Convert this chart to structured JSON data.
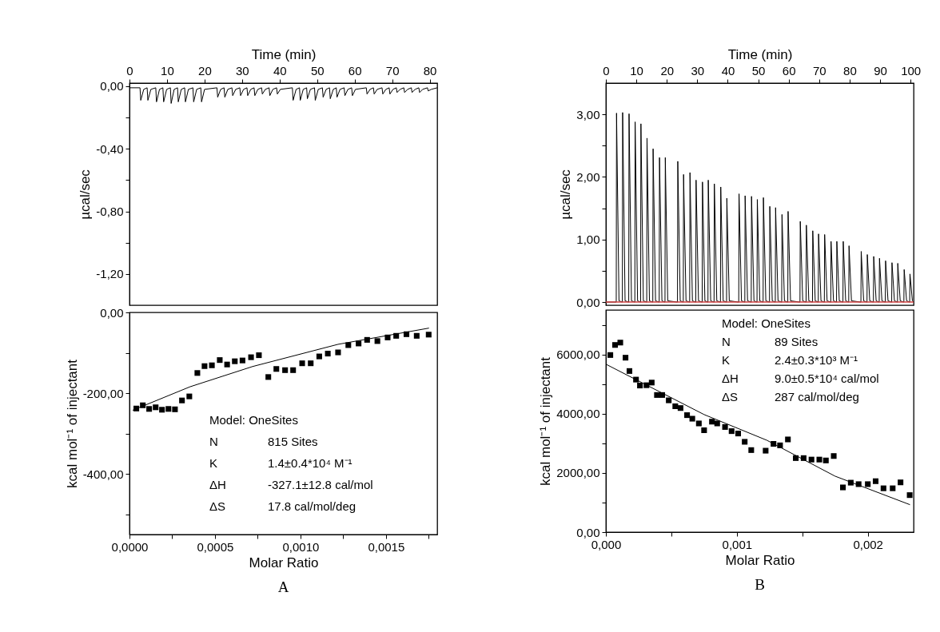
{
  "chart_data": [
    {
      "type": "line",
      "xlabel": "Time (min)",
      "ylabel": "µcal/sec",
      "xlim": [
        0,
        82
      ],
      "xticks": [
        0,
        10,
        20,
        30,
        40,
        50,
        60,
        70,
        80
      ],
      "ylim": [
        -1.4,
        0.02
      ],
      "yticks": [
        {
          "value": -1.2,
          "label": "-1,20"
        },
        {
          "value": -1.0,
          "label": null
        },
        {
          "value": -0.8,
          "label": "-0,80"
        },
        {
          "value": -0.6,
          "label": null
        },
        {
          "value": -0.4,
          "label": "-0,40"
        },
        {
          "value": -0.2,
          "label": null
        },
        {
          "value": 0,
          "label": "0,00"
        }
      ],
      "series": [
        {
          "color": "#000000",
          "x": [
            0,
            2.8,
            3.0,
            3.8,
            4.7,
            4.9,
            5.7,
            7.0,
            7.2,
            8.0,
            8.9,
            9.1,
            9.9,
            10.9,
            11.1,
            11.9,
            12.8,
            13.0,
            13.8,
            14.7,
            14.9,
            15.7,
            16.9,
            17.1,
            17.9,
            19.0,
            19.2,
            20.0,
            23.3,
            23.5,
            24.3,
            25.2,
            25.4,
            26.2,
            27.3,
            27.5,
            28.3,
            29.4,
            29.6,
            30.4,
            31.3,
            31.5,
            32.3,
            33.2,
            33.4,
            34.2,
            35.2,
            35.4,
            36.2,
            37.2,
            37.4,
            38.2,
            39.2,
            39.4,
            40.2,
            43.4,
            43.6,
            44.4,
            45.3,
            45.5,
            46.3,
            47.2,
            47.4,
            48.2,
            49.3,
            49.5,
            50.3,
            51.4,
            51.6,
            52.4,
            53.3,
            53.5,
            54.3,
            55.1,
            55.3,
            56.1,
            57.2,
            57.4,
            58.2,
            59.2,
            59.4,
            60.2,
            63.1,
            63.3,
            64.1,
            65.0,
            65.2,
            66.0,
            67.3,
            67.5,
            68.3,
            69.2,
            69.4,
            70.2,
            71.1,
            71.3,
            72.1,
            73.1,
            73.3,
            74.1,
            75.1,
            75.3,
            76.1,
            77.1,
            77.3,
            78.1,
            79.4,
            79.6,
            80.4,
            82
          ],
          "values": [
            -0.01,
            -0.01,
            -0.09,
            -0.02,
            -0.01,
            -0.09,
            -0.02,
            -0.01,
            -0.1,
            -0.02,
            -0.01,
            -0.1,
            -0.02,
            -0.01,
            -0.11,
            -0.02,
            -0.01,
            -0.1,
            -0.02,
            -0.01,
            -0.1,
            -0.02,
            -0.01,
            -0.1,
            -0.02,
            -0.01,
            -0.1,
            -0.02,
            -0.01,
            -0.07,
            -0.02,
            -0.01,
            -0.07,
            -0.02,
            -0.01,
            -0.06,
            -0.02,
            -0.01,
            -0.06,
            -0.02,
            -0.01,
            -0.06,
            -0.02,
            -0.01,
            -0.06,
            -0.02,
            -0.01,
            -0.05,
            -0.02,
            -0.01,
            -0.06,
            -0.02,
            -0.01,
            -0.05,
            -0.02,
            -0.01,
            -0.09,
            -0.02,
            -0.01,
            -0.09,
            -0.02,
            -0.01,
            -0.08,
            -0.02,
            -0.01,
            -0.09,
            -0.02,
            -0.01,
            -0.07,
            -0.02,
            -0.01,
            -0.08,
            -0.02,
            -0.01,
            -0.07,
            -0.02,
            -0.01,
            -0.06,
            -0.02,
            -0.01,
            -0.06,
            -0.02,
            -0.01,
            -0.05,
            -0.02,
            -0.01,
            -0.05,
            -0.02,
            -0.01,
            -0.05,
            -0.02,
            -0.01,
            -0.05,
            -0.02,
            -0.01,
            -0.04,
            -0.02,
            -0.01,
            -0.04,
            -0.02,
            -0.01,
            -0.04,
            -0.02,
            -0.01,
            -0.04,
            -0.02,
            -0.01,
            -0.03,
            -0.02,
            -0.01
          ]
        }
      ]
    },
    {
      "type": "scatter",
      "title": "A",
      "xlabel": "Molar Ratio",
      "ylabel": "kcal mol⁻¹ of injectant",
      "xlim": [
        0,
        0.0018
      ],
      "xticks": [
        {
          "value": 0,
          "label": "0,0000"
        },
        {
          "value": 0.00025,
          "label": null
        },
        {
          "value": 0.0005,
          "label": "0,0005"
        },
        {
          "value": 0.00075,
          "label": null
        },
        {
          "value": 0.001,
          "label": "0,0010"
        },
        {
          "value": 0.00125,
          "label": null
        },
        {
          "value": 0.0015,
          "label": "0,0015"
        },
        {
          "value": 0.00175,
          "label": null
        }
      ],
      "ylim": [
        -550,
        0
      ],
      "yticks": [
        {
          "value": -500,
          "label": null
        },
        {
          "value": -400,
          "label": "-400,00"
        },
        {
          "value": -300,
          "label": null
        },
        {
          "value": -200,
          "label": "-200,00"
        },
        {
          "value": -100,
          "label": null
        },
        {
          "value": 0,
          "label": "0,00"
        }
      ],
      "annotations": [
        "Model: OneSites",
        "N",
        "815 Sites",
        "K",
        "1.4±0.4*10⁴ M⁻¹",
        "ΔH",
        "-327.1±12.8 cal/mol",
        "ΔS",
        "17.8 cal/mol/deg"
      ],
      "series": [
        {
          "color": "#000000",
          "marker": "square",
          "x": [
            4e-05,
            7.8e-05,
            0.000115,
            0.000153,
            0.00019,
            0.000228,
            0.000266,
            0.000307,
            0.00035,
            0.000397,
            0.000439,
            0.000482,
            0.000528,
            0.000571,
            0.000616,
            0.000661,
            0.000711,
            0.000757,
            0.000812,
            0.000859,
            0.00091,
            0.000957,
            0.00101,
            0.00106,
            0.00111,
            0.00116,
            0.00122,
            0.00128,
            0.00134,
            0.00139,
            0.00145,
            0.00151,
            0.00156,
            0.00162,
            0.00168,
            0.00175
          ],
          "values": [
            -238,
            -230,
            -239,
            -235,
            -241,
            -239,
            -240,
            -218,
            -208,
            -150,
            -133,
            -131,
            -118,
            -129,
            -121,
            -119,
            -111,
            -106,
            -160,
            -140,
            -143,
            -143,
            -126,
            -126,
            -109,
            -102,
            -99,
            -81,
            -77,
            -68,
            -71,
            -62,
            -58,
            -54,
            -58,
            -55
          ]
        },
        {
          "type": "line",
          "color": "#000000",
          "x": [
            2e-05,
            0.000355,
            0.00072,
            0.00122,
            0.00175
          ],
          "values": [
            -242,
            -184,
            -134,
            -79,
            -39
          ]
        }
      ]
    },
    {
      "type": "line",
      "xlabel": "Time (min)",
      "ylabel": "µcal/sec",
      "xlim": [
        0,
        101
      ],
      "xticks": [
        0,
        10,
        20,
        30,
        40,
        50,
        60,
        70,
        80,
        90,
        100
      ],
      "ylim": [
        -0.05,
        3.5
      ],
      "yticks": [
        {
          "value": 0,
          "label": "0,00"
        },
        {
          "value": 0.5,
          "label": null
        },
        {
          "value": 1,
          "label": "1,00"
        },
        {
          "value": 1.5,
          "label": null
        },
        {
          "value": 2,
          "label": "2,00"
        },
        {
          "value": 2.5,
          "label": null
        },
        {
          "value": 3,
          "label": "3,00"
        }
      ],
      "ref_lines": [
        {
          "axis": "y",
          "value": 0,
          "color": "#d04040"
        }
      ],
      "series": [
        {
          "color": "#000000",
          "x": [
            0,
            3.4,
            3.5,
            4.3,
            5.4,
            5.5,
            6.3,
            7.5,
            7.6,
            8.4,
            9.5,
            9.6,
            10.4,
            11.4,
            11.5,
            12.3,
            13.4,
            13.5,
            14.3,
            15.4,
            15.5,
            16.3,
            17.5,
            17.6,
            18.4,
            19.4,
            19.5,
            20.3,
            23.5,
            23.6,
            24.4,
            25.4,
            25.5,
            26.3,
            27.5,
            27.6,
            28.4,
            29.5,
            29.6,
            30.4,
            31.6,
            31.7,
            32.5,
            33.5,
            33.6,
            34.4,
            35.5,
            35.6,
            36.4,
            37.6,
            37.7,
            38.5,
            39.6,
            39.7,
            40.5,
            43.6,
            43.7,
            44.5,
            45.6,
            45.7,
            46.5,
            47.7,
            47.8,
            48.6,
            49.6,
            49.7,
            50.5,
            51.6,
            51.7,
            52.5,
            53.7,
            53.8,
            54.6,
            55.6,
            55.7,
            56.5,
            57.7,
            57.8,
            58.6,
            59.7,
            59.8,
            60.6,
            63.7,
            63.8,
            64.6,
            65.7,
            65.8,
            66.6,
            67.8,
            67.9,
            68.7,
            69.7,
            69.8,
            70.6,
            71.7,
            71.8,
            72.6,
            73.8,
            73.9,
            74.7,
            75.7,
            75.8,
            76.6,
            77.8,
            77.9,
            78.7,
            79.7,
            79.8,
            80.6,
            83.7,
            83.8,
            84.6,
            85.7,
            85.8,
            86.6,
            87.8,
            87.9,
            88.7,
            89.7,
            89.8,
            90.6,
            91.7,
            91.8,
            92.6,
            93.8,
            93.9,
            94.7,
            95.7,
            95.8,
            96.6,
            97.8,
            97.9,
            98.7,
            99.7,
            99.8,
            100.6,
            101
          ],
          "values": [
            0,
            0,
            3.02,
            0.02,
            0,
            3.03,
            0.02,
            0,
            3.01,
            0.02,
            0,
            2.88,
            0.02,
            0,
            2.85,
            0.02,
            0,
            2.62,
            0.02,
            0,
            2.45,
            0.02,
            0,
            2.31,
            0.02,
            0,
            2.31,
            0.02,
            0,
            2.25,
            0.02,
            0,
            2.04,
            0.02,
            0,
            2.07,
            0.02,
            0,
            1.95,
            0.02,
            0,
            1.92,
            0.02,
            0,
            1.95,
            0.02,
            0,
            1.89,
            0.02,
            0,
            1.84,
            0.02,
            0,
            1.66,
            0.02,
            0,
            1.73,
            0.02,
            0,
            1.7,
            0.02,
            0,
            1.69,
            0.02,
            0,
            1.64,
            0.02,
            0,
            1.67,
            0.02,
            0,
            1.53,
            0.02,
            0,
            1.51,
            0.02,
            0,
            1.4,
            0.02,
            0,
            1.45,
            0.02,
            0,
            1.29,
            0.02,
            0,
            1.23,
            0.02,
            0,
            1.14,
            0.02,
            0,
            1.09,
            0.02,
            0,
            1.08,
            0.02,
            0,
            0.97,
            0.02,
            0,
            0.97,
            0.02,
            0,
            0.97,
            0.02,
            0,
            0.9,
            0.02,
            0,
            0.81,
            0.02,
            0,
            0.76,
            0.02,
            0,
            0.73,
            0.02,
            0,
            0.7,
            0.02,
            0,
            0.66,
            0.02,
            0,
            0.63,
            0.02,
            0,
            0.62,
            0.02,
            0,
            0.52,
            0.02,
            0,
            0.45,
            0.02,
            0
          ]
        }
      ]
    },
    {
      "type": "scatter",
      "title": "B",
      "xlabel": "Molar Ratio",
      "ylabel": "kcal mol⁻¹ of injectant",
      "xlim": [
        0,
        0.00235
      ],
      "xticks": [
        {
          "value": 0,
          "label": "0,000"
        },
        {
          "value": 0.0005,
          "label": null
        },
        {
          "value": 0.001,
          "label": "0,001"
        },
        {
          "value": 0.0015,
          "label": null
        },
        {
          "value": 0.002,
          "label": "0,002"
        }
      ],
      "ylim": [
        0,
        7500
      ],
      "yticks": [
        {
          "value": 0,
          "label": "0,00"
        },
        {
          "value": 1000,
          "label": null
        },
        {
          "value": 2000,
          "label": "2000,00"
        },
        {
          "value": 3000,
          "label": null
        },
        {
          "value": 4000,
          "label": "4000,00"
        },
        {
          "value": 5000,
          "label": null
        },
        {
          "value": 6000,
          "label": "6000,00"
        },
        {
          "value": 7000,
          "label": null
        }
      ],
      "annotations": [
        "Model: OneSites",
        "N",
        "89 Sites",
        "K",
        "2.4±0.3*10³ M⁻¹",
        "ΔH",
        "9.0±0.5*10⁴ cal/mol",
        "ΔS",
        "287 cal/mol/deg"
      ],
      "series": [
        {
          "color": "#000000",
          "marker": "square",
          "x": [
            3.4e-05,
            7e-05,
            0.00011,
            0.00015,
            0.00018,
            0.00023,
            0.00026,
            0.00031,
            0.00035,
            0.00039,
            0.00043,
            0.00048,
            0.00053,
            0.00057,
            0.00062,
            0.00066,
            0.00071,
            0.00075,
            0.00081,
            0.00085,
            0.00091,
            0.00096,
            0.00101,
            0.00106,
            0.00111,
            0.00122,
            0.00128,
            0.00133,
            0.00139,
            0.00145,
            0.00151,
            0.00157,
            0.00163,
            0.00168,
            0.00174,
            0.00181,
            0.00187,
            0.00193,
            0.002,
            0.00206,
            0.00212,
            0.00219,
            0.00225,
            0.00232
          ],
          "values": [
            5980,
            6320,
            6400,
            5890,
            5440,
            5150,
            4950,
            4960,
            5050,
            4630,
            4630,
            4450,
            4250,
            4190,
            3950,
            3830,
            3670,
            3440,
            3730,
            3670,
            3550,
            3410,
            3330,
            3050,
            2770,
            2750,
            2980,
            2930,
            3130,
            2500,
            2500,
            2450,
            2450,
            2420,
            2570,
            1510,
            1670,
            1620,
            1620,
            1720,
            1480,
            1480,
            1680,
            1250
          ]
        },
        {
          "type": "line",
          "color": "#000000",
          "x": [
            0,
            0.00075,
            0.00123,
            0.00175,
            0.00232
          ],
          "values": [
            5670,
            3970,
            3100,
            1890,
            930
          ]
        }
      ]
    }
  ]
}
